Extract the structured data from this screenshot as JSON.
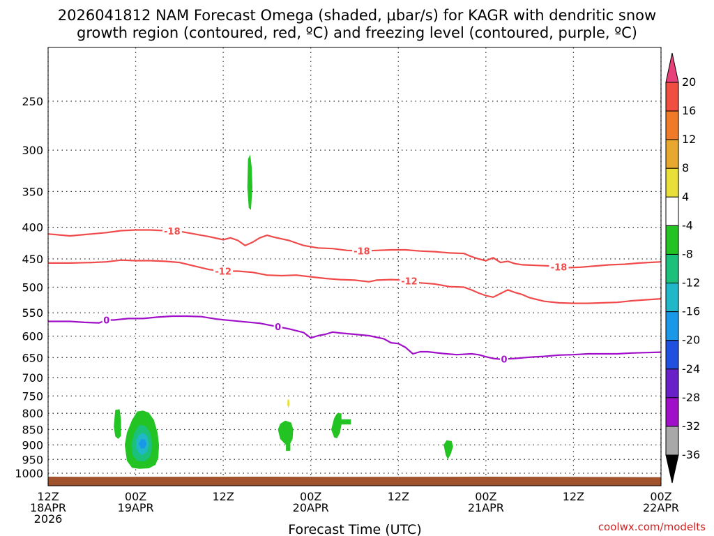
{
  "chart_data": {
    "type": "contour",
    "title_line1": "2026041812 NAM Forecast Omega (shaded, μbar/s) for KAGR with dendritic snow",
    "title_line2": "growth region (contoured, red, ºC) and freezing level (contoured, purple, ºC)",
    "xlabel": "Forecast Time (UTC)",
    "credit": "coolwx.com/modelts",
    "x_range_hours": [
      0,
      84
    ],
    "y_range_hpa": [
      200,
      1030
    ],
    "y_ticks": [
      "250",
      "300",
      "350",
      "400",
      "450",
      "500",
      "550",
      "600",
      "650",
      "700",
      "750",
      "800",
      "850",
      "900",
      "950",
      "1000"
    ],
    "x_ticks": [
      {
        "hour": 0,
        "l1": "12Z",
        "l2": "18APR",
        "l3": "2026"
      },
      {
        "hour": 12,
        "l1": "00Z",
        "l2": "19APR",
        "l3": ""
      },
      {
        "hour": 24,
        "l1": "12Z",
        "l2": "",
        "l3": ""
      },
      {
        "hour": 36,
        "l1": "00Z",
        "l2": "20APR",
        "l3": ""
      },
      {
        "hour": 48,
        "l1": "12Z",
        "l2": "",
        "l3": ""
      },
      {
        "hour": 60,
        "l1": "00Z",
        "l2": "21APR",
        "l3": ""
      },
      {
        "hour": 72,
        "l1": "12Z",
        "l2": "",
        "l3": ""
      },
      {
        "hour": 84,
        "l1": "00Z",
        "l2": "22APR",
        "l3": ""
      }
    ],
    "colorbar": {
      "labels": [
        "20",
        "16",
        "12",
        "8",
        "4",
        "-4",
        "-8",
        "-12",
        "-16",
        "-20",
        "-24",
        "-28",
        "-32",
        "-36"
      ],
      "colors": [
        "#e8407a",
        "#f04e40",
        "#f07a28",
        "#e8a830",
        "#e8e038",
        "#ffffff",
        "#22c322",
        "#1bc07a",
        "#20b8c8",
        "#1a98e8",
        "#2050e0",
        "#6a20c8",
        "#a010c8",
        "#a8a8a8",
        "#000000"
      ]
    },
    "contours": [
      {
        "name": "contour-minus18",
        "color": "#f04a4a",
        "label": "-18",
        "points": [
          [
            0,
            410
          ],
          [
            3,
            413
          ],
          [
            6,
            410
          ],
          [
            8,
            408
          ],
          [
            10,
            405
          ],
          [
            12,
            404
          ],
          [
            14,
            404
          ],
          [
            16,
            405
          ],
          [
            18,
            406
          ],
          [
            20,
            410
          ],
          [
            22,
            414
          ],
          [
            24,
            419
          ],
          [
            25,
            416
          ],
          [
            26,
            420
          ],
          [
            27,
            428
          ],
          [
            28,
            423
          ],
          [
            29,
            416
          ],
          [
            30,
            412
          ],
          [
            31,
            415
          ],
          [
            33,
            420
          ],
          [
            35,
            428
          ],
          [
            37,
            432
          ],
          [
            39,
            433
          ],
          [
            41,
            436
          ],
          [
            43,
            437
          ],
          [
            45,
            436
          ],
          [
            47,
            435
          ],
          [
            49,
            435
          ],
          [
            51,
            437
          ],
          [
            53,
            438
          ],
          [
            55,
            440
          ],
          [
            57,
            441
          ],
          [
            58,
            446
          ],
          [
            59,
            450
          ],
          [
            60,
            453
          ],
          [
            61,
            448
          ],
          [
            62,
            456
          ],
          [
            63,
            454
          ],
          [
            64,
            458
          ],
          [
            65,
            460
          ],
          [
            67,
            461
          ],
          [
            69,
            462
          ],
          [
            71,
            465
          ],
          [
            73,
            464
          ],
          [
            75,
            462
          ],
          [
            77,
            460
          ],
          [
            79,
            459
          ],
          [
            81,
            457
          ],
          [
            84,
            455
          ]
        ],
        "labels_at": [
          17,
          43,
          70
        ]
      },
      {
        "name": "contour-minus12",
        "color": "#f04a4a",
        "label": "-12",
        "points": [
          [
            0,
            457
          ],
          [
            3,
            457
          ],
          [
            6,
            456
          ],
          [
            8,
            455
          ],
          [
            10,
            452
          ],
          [
            12,
            453
          ],
          [
            14,
            453
          ],
          [
            16,
            454
          ],
          [
            18,
            456
          ],
          [
            20,
            462
          ],
          [
            22,
            468
          ],
          [
            24,
            471
          ],
          [
            26,
            471
          ],
          [
            28,
            473
          ],
          [
            30,
            478
          ],
          [
            32,
            479
          ],
          [
            34,
            478
          ],
          [
            36,
            481
          ],
          [
            38,
            484
          ],
          [
            40,
            486
          ],
          [
            42,
            487
          ],
          [
            44,
            490
          ],
          [
            45,
            487
          ],
          [
            47,
            486
          ],
          [
            49,
            487
          ],
          [
            51,
            492
          ],
          [
            53,
            494
          ],
          [
            55,
            499
          ],
          [
            57,
            500
          ],
          [
            58,
            505
          ],
          [
            59,
            511
          ],
          [
            60,
            516
          ],
          [
            61,
            519
          ],
          [
            62,
            512
          ],
          [
            63,
            505
          ],
          [
            64,
            510
          ],
          [
            65,
            514
          ],
          [
            66,
            520
          ],
          [
            68,
            527
          ],
          [
            70,
            530
          ],
          [
            72,
            531
          ],
          [
            74,
            531
          ],
          [
            76,
            530
          ],
          [
            78,
            529
          ],
          [
            80,
            526
          ],
          [
            82,
            524
          ],
          [
            84,
            522
          ]
        ],
        "labels_at": [
          24,
          49.5
        ]
      },
      {
        "name": "contour-zero",
        "color": "#a010c8",
        "label": "0",
        "points": [
          [
            0,
            568
          ],
          [
            3,
            568
          ],
          [
            5,
            570
          ],
          [
            7,
            571
          ],
          [
            8,
            565
          ],
          [
            9,
            565
          ],
          [
            11,
            562
          ],
          [
            13,
            562
          ],
          [
            15,
            559
          ],
          [
            17,
            557
          ],
          [
            19,
            557
          ],
          [
            21,
            558
          ],
          [
            23,
            563
          ],
          [
            25,
            566
          ],
          [
            27,
            569
          ],
          [
            29,
            572
          ],
          [
            31,
            578
          ],
          [
            33,
            584
          ],
          [
            34,
            588
          ],
          [
            35,
            592
          ],
          [
            36,
            604
          ],
          [
            37,
            599
          ],
          [
            38,
            596
          ],
          [
            39,
            591
          ],
          [
            40,
            593
          ],
          [
            42,
            596
          ],
          [
            44,
            599
          ],
          [
            46,
            606
          ],
          [
            47,
            615
          ],
          [
            48,
            617
          ],
          [
            49,
            626
          ],
          [
            50,
            641
          ],
          [
            51,
            636
          ],
          [
            52,
            636
          ],
          [
            54,
            640
          ],
          [
            56,
            643
          ],
          [
            58,
            641
          ],
          [
            59,
            643
          ],
          [
            60,
            648
          ],
          [
            61,
            652
          ],
          [
            62,
            654
          ],
          [
            64,
            652
          ],
          [
            66,
            649
          ],
          [
            68,
            647
          ],
          [
            70,
            644
          ],
          [
            72,
            643
          ],
          [
            74,
            641
          ],
          [
            76,
            641
          ],
          [
            78,
            641
          ],
          [
            80,
            639
          ],
          [
            82,
            638
          ],
          [
            84,
            637
          ]
        ],
        "labels_at": [
          8,
          31.5,
          62.5
        ]
      }
    ],
    "shaded_regions": [
      {
        "name": "omega-region-1",
        "value": -4,
        "color": "#22c322",
        "poly": [
          [
            9.2,
            790
          ],
          [
            9.8,
            788
          ],
          [
            10,
            820
          ],
          [
            10,
            870
          ],
          [
            9.6,
            880
          ],
          [
            9.2,
            872
          ],
          [
            9.0,
            840
          ]
        ]
      },
      {
        "name": "omega-region-2",
        "value": -6,
        "color": "#22c322",
        "poly": [
          [
            10.5,
            900
          ],
          [
            10.8,
            860
          ],
          [
            11.5,
            820
          ],
          [
            12.2,
            795
          ],
          [
            13,
            792
          ],
          [
            13.8,
            798
          ],
          [
            14.5,
            820
          ],
          [
            15,
            860
          ],
          [
            15.2,
            900
          ],
          [
            15.1,
            945
          ],
          [
            14.7,
            970
          ],
          [
            13.8,
            982
          ],
          [
            12.5,
            984
          ],
          [
            11.5,
            980
          ],
          [
            10.8,
            955
          ]
        ]
      },
      {
        "name": "omega-region-3",
        "value": -10,
        "color": "#1bc07a",
        "poly": [
          [
            11.4,
            900
          ],
          [
            11.8,
            860
          ],
          [
            12.5,
            835
          ],
          [
            13.3,
            838
          ],
          [
            14,
            860
          ],
          [
            14.3,
            900
          ],
          [
            14,
            940
          ],
          [
            13.2,
            958
          ],
          [
            12.2,
            955
          ],
          [
            11.6,
            935
          ]
        ]
      },
      {
        "name": "omega-region-4",
        "value": -14,
        "color": "#20b8c8",
        "poly": [
          [
            12,
            895
          ],
          [
            12.3,
            870
          ],
          [
            13,
            860
          ],
          [
            13.6,
            872
          ],
          [
            13.8,
            900
          ],
          [
            13.5,
            925
          ],
          [
            12.8,
            935
          ],
          [
            12.2,
            920
          ]
        ]
      },
      {
        "name": "omega-region-5",
        "value": -17,
        "color": "#1a98e8",
        "poly": [
          [
            12.4,
            895
          ],
          [
            12.8,
            880
          ],
          [
            13.3,
            882
          ],
          [
            13.5,
            898
          ],
          [
            13.2,
            912
          ],
          [
            12.7,
            912
          ]
        ]
      },
      {
        "name": "omega-region-6",
        "value": -4,
        "color": "#22c322",
        "poly": [
          [
            27.4,
            310
          ],
          [
            27.7,
            305
          ],
          [
            27.9,
            320
          ],
          [
            28,
            345
          ],
          [
            27.8,
            375
          ],
          [
            27.5,
            372
          ],
          [
            27.3,
            345
          ]
        ]
      },
      {
        "name": "omega-region-7",
        "value": -4,
        "color": "#22c322",
        "poly": [
          [
            31.5,
            850
          ],
          [
            31.8,
            832
          ],
          [
            32.5,
            822
          ],
          [
            33.3,
            828
          ],
          [
            33.6,
            850
          ],
          [
            33.5,
            880
          ],
          [
            33.2,
            895
          ],
          [
            33.2,
            920
          ],
          [
            32.6,
            920
          ],
          [
            32.6,
            900
          ],
          [
            31.8,
            880
          ]
        ]
      },
      {
        "name": "omega-region-8",
        "value": 4,
        "color": "#e8e038",
        "poly": [
          [
            32.8,
            762
          ],
          [
            33.0,
            758
          ],
          [
            33.1,
            775
          ],
          [
            32.9,
            785
          ],
          [
            32.8,
            775
          ]
        ]
      },
      {
        "name": "omega-region-9",
        "value": -4,
        "color": "#22c322",
        "poly": [
          [
            38.8,
            850
          ],
          [
            39.2,
            815
          ],
          [
            39.6,
            800
          ],
          [
            40.2,
            800
          ],
          [
            40.2,
            818
          ],
          [
            41.5,
            818
          ],
          [
            41.5,
            834
          ],
          [
            40.2,
            834
          ],
          [
            40,
            860
          ],
          [
            39.6,
            878
          ],
          [
            39.2,
            875
          ]
        ]
      },
      {
        "name": "omega-region-10",
        "value": -4,
        "color": "#22c322",
        "poly": [
          [
            54.2,
            900
          ],
          [
            54.6,
            885
          ],
          [
            55.3,
            887
          ],
          [
            55.5,
            905
          ],
          [
            55.2,
            930
          ],
          [
            54.8,
            950
          ],
          [
            54.5,
            935
          ]
        ]
      }
    ],
    "surface": {
      "name": "ground-surface",
      "color": "#a0522d",
      "top_hpa": [
        [
          0,
          1013
        ],
        [
          5,
          1014
        ],
        [
          30,
          1013
        ],
        [
          40,
          1014
        ],
        [
          60,
          1013
        ],
        [
          84,
          1015
        ]
      ]
    }
  }
}
